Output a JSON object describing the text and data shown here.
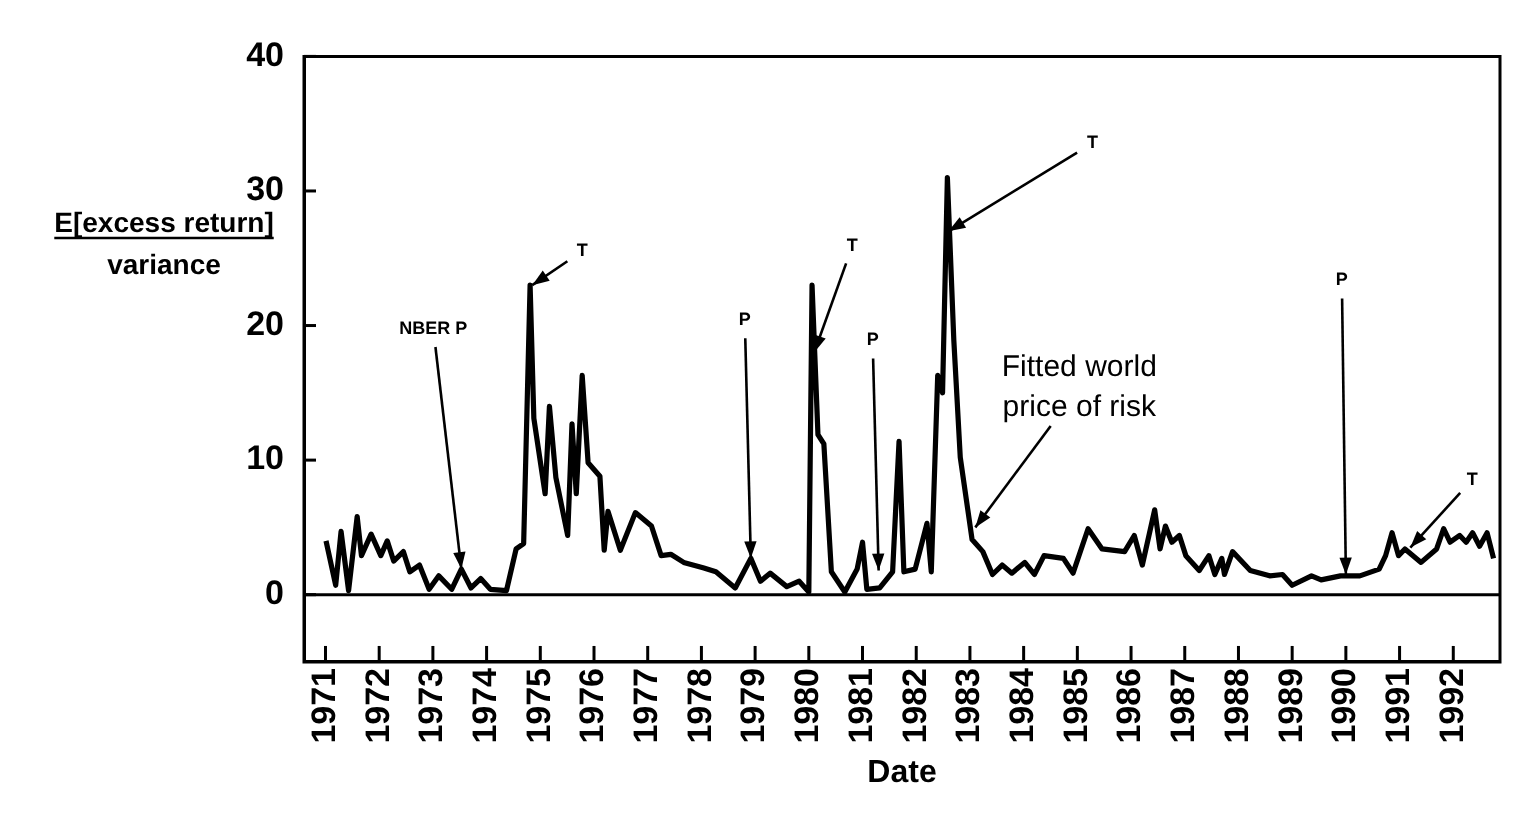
{
  "chart_data": {
    "type": "line",
    "xlabel": "Date",
    "ylabel": "E[excess return]\nvariance",
    "xlim": [
      1970.6,
      1992.87
    ],
    "xticks": [
      1971,
      1972,
      1973,
      1974,
      1975,
      1976,
      1977,
      1978,
      1979,
      1980,
      1981,
      1982,
      1983,
      1984,
      1985,
      1986,
      1987,
      1988,
      1989,
      1990,
      1991,
      1992
    ],
    "ylim": [
      -5,
      40
    ],
    "yticks": [
      0,
      10,
      20,
      30,
      40
    ],
    "grid": false,
    "legend": false,
    "marker": "none",
    "line_style": "solid",
    "ref_lines": [
      {
        "axis": "y",
        "value": 0,
        "color": "#000000"
      }
    ],
    "series": [
      {
        "color": "#000000",
        "x": [
          1971.01,
          1971.19,
          1971.29,
          1971.43,
          1971.59,
          1971.67,
          1971.85,
          1972.03,
          1972.15,
          1972.27,
          1972.45,
          1972.57,
          1972.75,
          1972.93,
          1973.11,
          1973.35,
          1973.53,
          1973.71,
          1973.89,
          1974.07,
          1974.37,
          1974.55,
          1974.69,
          1974.81,
          1974.88,
          1975.09,
          1975.17,
          1975.29,
          1975.51,
          1975.59,
          1975.67,
          1975.78,
          1975.89,
          1976.11,
          1976.19,
          1976.26,
          1976.49,
          1976.77,
          1977.07,
          1977.25,
          1977.43,
          1977.67,
          1978.03,
          1978.27,
          1978.63,
          1978.92,
          1979.1,
          1979.28,
          1979.59,
          1979.82,
          1980.0,
          1980.06,
          1980.17,
          1980.28,
          1980.42,
          1980.67,
          1980.9,
          1981.0,
          1981.08,
          1981.32,
          1981.56,
          1981.68,
          1981.77,
          1981.98,
          1982.2,
          1982.28,
          1982.4,
          1982.49,
          1982.58,
          1982.7,
          1982.82,
          1983.04,
          1983.24,
          1983.42,
          1983.6,
          1983.78,
          1984.02,
          1984.2,
          1984.38,
          1984.74,
          1984.92,
          1985.2,
          1985.46,
          1985.88,
          1986.06,
          1986.21,
          1986.44,
          1986.54,
          1986.64,
          1986.76,
          1986.9,
          1987.02,
          1987.27,
          1987.45,
          1987.56,
          1987.69,
          1987.74,
          1987.89,
          1988.22,
          1988.58,
          1988.82,
          1989.0,
          1989.36,
          1989.54,
          1989.9,
          1990.26,
          1990.62,
          1990.74,
          1990.86,
          1990.98,
          1991.1,
          1991.4,
          1991.69,
          1991.82,
          1991.94,
          1992.12,
          1992.24,
          1992.36,
          1992.49,
          1992.63,
          1992.75
        ],
        "values": [
          4.0,
          0.7,
          4.7,
          0.3,
          5.8,
          2.9,
          4.5,
          2.9,
          4.0,
          2.5,
          3.2,
          1.7,
          2.2,
          0.4,
          1.4,
          0.4,
          1.9,
          0.5,
          1.2,
          0.4,
          0.3,
          3.4,
          3.8,
          23.0,
          13.1,
          7.5,
          14.0,
          8.7,
          4.4,
          12.7,
          7.5,
          16.3,
          9.8,
          8.8,
          3.3,
          6.2,
          3.3,
          6.1,
          5.1,
          2.9,
          3.0,
          2.4,
          2.0,
          1.7,
          0.5,
          2.7,
          1.0,
          1.6,
          0.6,
          1.0,
          0.2,
          23.0,
          11.9,
          11.2,
          1.7,
          0.2,
          1.9,
          3.9,
          0.4,
          0.5,
          1.7,
          11.4,
          1.7,
          1.9,
          5.3,
          1.7,
          16.3,
          15.0,
          31.0,
          18.9,
          10.2,
          4.1,
          3.2,
          1.5,
          2.2,
          1.6,
          2.4,
          1.5,
          2.9,
          2.7,
          1.6,
          4.9,
          3.4,
          3.2,
          4.4,
          2.2,
          6.3,
          3.4,
          5.1,
          3.9,
          4.4,
          2.9,
          1.8,
          2.9,
          1.5,
          2.7,
          1.5,
          3.2,
          1.8,
          1.4,
          1.5,
          0.7,
          1.4,
          1.1,
          1.4,
          1.4,
          1.9,
          2.9,
          4.6,
          2.9,
          3.4,
          2.4,
          3.4,
          4.9,
          3.9,
          4.4,
          3.9,
          4.6,
          3.6,
          4.6,
          2.7
        ]
      }
    ],
    "annotations": [
      {
        "text": "NBER P",
        "x": 1973.53,
        "y": 1.9
      },
      {
        "text": "T",
        "x": 1974.85,
        "y": 23
      },
      {
        "text": "P",
        "x": 1978.92,
        "y": 2.7
      },
      {
        "text": "T",
        "x": 1980.1,
        "y": 18
      },
      {
        "text": "P",
        "x": 1981.3,
        "y": 1.8
      },
      {
        "text": "T",
        "x": 1982.6,
        "y": 27
      },
      {
        "text": "Fitted world price of risk",
        "x": 1983.1,
        "y": 5
      },
      {
        "text": "P",
        "x": 1990.0,
        "y": 1.5
      },
      {
        "text": "T",
        "x": 1991.2,
        "y": 3.5
      }
    ]
  }
}
